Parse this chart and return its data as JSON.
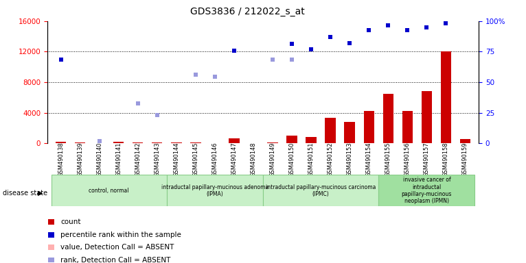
{
  "title": "GDS3836 / 212022_s_at",
  "samples": [
    "GSM490138",
    "GSM490139",
    "GSM490140",
    "GSM490141",
    "GSM490142",
    "GSM490143",
    "GSM490144",
    "GSM490145",
    "GSM490146",
    "GSM490147",
    "GSM490148",
    "GSM490149",
    "GSM490150",
    "GSM490151",
    "GSM490152",
    "GSM490153",
    "GSM490154",
    "GSM490155",
    "GSM490156",
    "GSM490157",
    "GSM490158",
    "GSM490159"
  ],
  "count_values": [
    200,
    130,
    50,
    180,
    130,
    90,
    150,
    80,
    50,
    650,
    50,
    80,
    1000,
    800,
    3300,
    2800,
    4200,
    6500,
    4200,
    6800,
    12000,
    550
  ],
  "percentile_rank": [
    11000,
    null,
    null,
    null,
    null,
    null,
    null,
    null,
    null,
    12100,
    null,
    null,
    13000,
    12300,
    13900,
    13100,
    14800,
    15400,
    14800,
    15200,
    15700,
    null
  ],
  "absent_rank": [
    null,
    null,
    300,
    null,
    5200,
    3700,
    null,
    9000,
    8700,
    null,
    null,
    11000,
    11000,
    null,
    null,
    null,
    null,
    null,
    null,
    null,
    null,
    null
  ],
  "absent_value": [
    null,
    null,
    null,
    null,
    null,
    null,
    null,
    null,
    null,
    null,
    50,
    null,
    null,
    null,
    null,
    null,
    null,
    null,
    null,
    null,
    null,
    null
  ],
  "disease_groups": [
    {
      "label": "control, normal",
      "start": 0,
      "end": 6,
      "color": "#c8f0c8",
      "border": "#88cc88"
    },
    {
      "label": "intraductal papillary-mucinous adenoma\n(IPMA)",
      "start": 6,
      "end": 11,
      "color": "#c8f0c8",
      "border": "#88cc88"
    },
    {
      "label": "intraductal papillary-mucinous carcinoma\n(IPMC)",
      "start": 11,
      "end": 17,
      "color": "#c8f0c8",
      "border": "#88cc88"
    },
    {
      "label": "invasive cancer of\nintraductal\npapillary-mucinous\nneoplasm (IPMN)",
      "start": 17,
      "end": 22,
      "color": "#a0e0a0",
      "border": "#88cc88"
    }
  ],
  "bar_color": "#cc0000",
  "rank_color": "#0000cc",
  "absent_rank_color": "#9999dd",
  "absent_value_color": "#ffb0b0",
  "ylim_left": [
    0,
    16000
  ],
  "ylim_right": [
    0,
    100
  ],
  "yticks_left": [
    0,
    4000,
    8000,
    12000,
    16000
  ],
  "yticks_right": [
    0,
    25,
    50,
    75,
    100
  ],
  "grid_values": [
    4000,
    8000,
    12000
  ]
}
